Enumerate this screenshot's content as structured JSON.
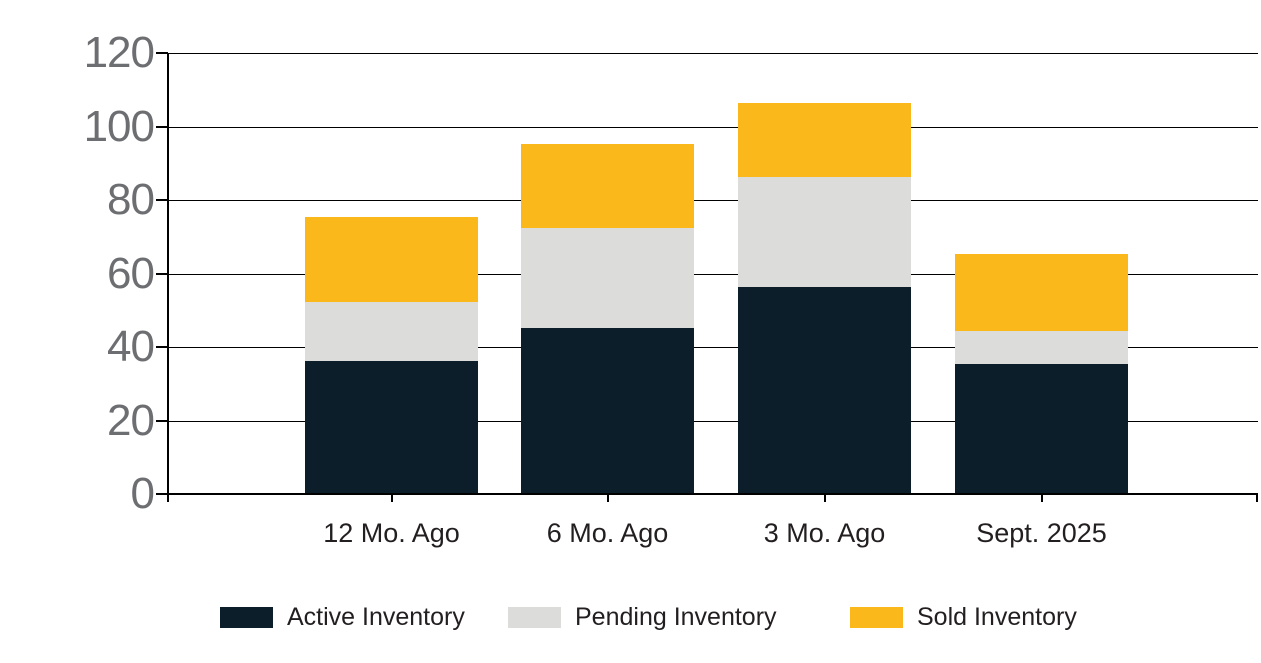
{
  "chart_data": {
    "type": "bar",
    "stacked": true,
    "title": "",
    "xlabel": "",
    "ylabel": "",
    "categories": [
      "12 Mo. Ago",
      "6 Mo. Ago",
      "3 Mo. Ago",
      "Sept. 2025"
    ],
    "series": [
      {
        "name": "Active Inventory",
        "color": "#0c1e2a",
        "values": [
          36,
          45,
          56,
          35
        ]
      },
      {
        "name": "Pending Inventory",
        "color": "#dcdddb",
        "values": [
          16,
          27,
          30,
          9
        ]
      },
      {
        "name": "Sold Inventory",
        "color": "#fbb81a",
        "values": [
          23,
          23,
          20,
          21
        ]
      }
    ],
    "stack_totals": [
      75,
      95,
      106,
      65
    ],
    "ylim": [
      0,
      120
    ],
    "yticks": [
      0,
      20,
      40,
      60,
      80,
      100,
      120
    ],
    "grid": "horizontal",
    "legend_position": "bottom",
    "colors": {
      "axis": "#000000",
      "y_tick_labels": "#6d6e71",
      "x_tick_labels": "#231f20",
      "legend_text": "#231f20",
      "background": "#ffffff"
    }
  }
}
